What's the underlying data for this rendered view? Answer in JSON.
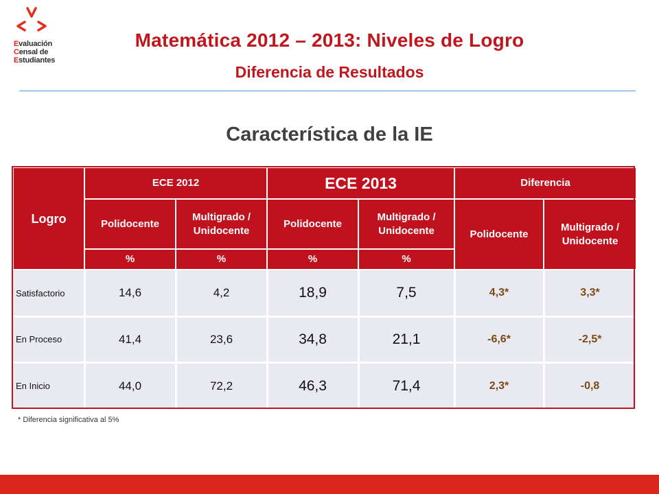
{
  "logo": {
    "line1_cap": "E",
    "line1_rest": "valuación",
    "line2_cap": "C",
    "line2_rest": "ensal de",
    "line3_cap": "E",
    "line3_rest": "studiantes"
  },
  "header": {
    "title": "Matemática 2012 – 2013: Niveles de Logro",
    "subtitle": "Diferencia de Resultados"
  },
  "section_title": "Característica de la IE",
  "table": {
    "col_logro": "Logro",
    "group_2012": "ECE 2012",
    "group_2013": "ECE 2013",
    "group_diff": "Diferencia",
    "sub_poli": "Polidocente",
    "sub_multi": "Multigrado / Unidocente",
    "unit": "%",
    "rows": [
      {
        "label": "Satisfactorio",
        "p2012": "14,6",
        "m2012": "4,2",
        "p2013": "18,9",
        "m2013": "7,5",
        "dpoli": "4,3*",
        "dmulti": "3,3*"
      },
      {
        "label": "En Proceso",
        "p2012": "41,4",
        "m2012": "23,6",
        "p2013": "34,8",
        "m2013": "21,1",
        "dpoli": "-6,6*",
        "dmulti": "-2,5*"
      },
      {
        "label": "En Inicio",
        "p2012": "44,0",
        "m2012": "72,2",
        "p2013": "46,3",
        "m2013": "71,4",
        "dpoli": "2,3*",
        "dmulti": "-0,8"
      }
    ]
  },
  "footnote": "* Diferencia significativa al 5%",
  "colors": {
    "brand_red": "#c0111f",
    "cell_bg": "#e9eaf1",
    "diff_text": "#7a4a12",
    "footer_red": "#d8261d"
  }
}
